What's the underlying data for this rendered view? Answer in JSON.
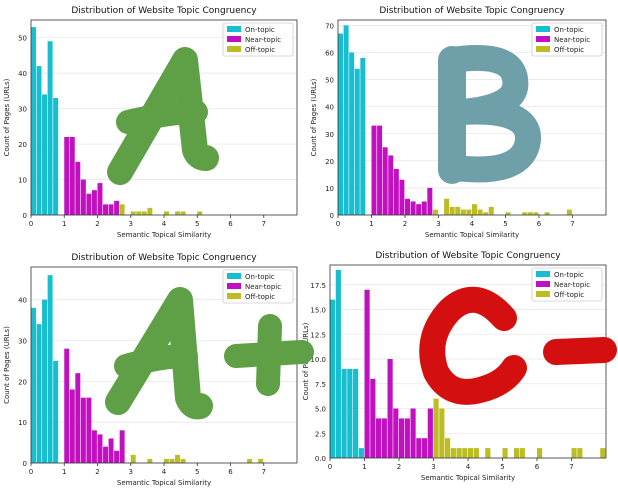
{
  "colors": {
    "on": "#17becf",
    "near": "#c010c0",
    "off": "#bcbd22",
    "grid": "#e8e8e8",
    "gradeA": "#5f9f45",
    "gradeB": "#6f9fa8",
    "gradeC": "#d40f0f"
  },
  "chart_data": [
    {
      "type": "bar",
      "title": "Distribution of Website Topic Congruency",
      "xlabel": "Semantic Topical Similarity",
      "ylabel": "Count of Pages (URLs)",
      "xlim": [
        0,
        8
      ],
      "ylim": [
        0,
        55
      ],
      "xticks": [
        "0",
        "1",
        "2",
        "3",
        "4",
        "5",
        "6",
        "7"
      ],
      "yticks": [
        "0",
        "10",
        "20",
        "30",
        "40",
        "50"
      ],
      "grade": "A",
      "legend": [
        "On-topic",
        "Near-topic",
        "Off-topic"
      ],
      "bin_width": 0.167,
      "series": [
        {
          "name": "On-topic",
          "bins": [
            [
              0.0,
              53
            ],
            [
              0.167,
              42
            ],
            [
              0.333,
              34
            ],
            [
              0.5,
              49
            ],
            [
              0.667,
              33
            ]
          ]
        },
        {
          "name": "Near-topic",
          "bins": [
            [
              1.0,
              22
            ],
            [
              1.167,
              22
            ],
            [
              1.333,
              15
            ],
            [
              1.5,
              10
            ],
            [
              1.667,
              6
            ],
            [
              1.833,
              7
            ],
            [
              2.0,
              9
            ],
            [
              2.167,
              3
            ],
            [
              2.333,
              3
            ],
            [
              2.5,
              4
            ]
          ]
        },
        {
          "name": "Off-topic",
          "bins": [
            [
              2.667,
              3
            ],
            [
              3.0,
              1
            ],
            [
              3.167,
              1
            ],
            [
              3.333,
              1
            ],
            [
              3.5,
              2
            ],
            [
              4.0,
              1
            ],
            [
              4.333,
              1
            ],
            [
              4.5,
              1
            ],
            [
              5.0,
              1
            ]
          ]
        }
      ]
    },
    {
      "type": "bar",
      "title": "Distribution of Website Topic Congruency",
      "xlabel": "Semantic Topical Similarity",
      "ylabel": "Count of Pages (URLs)",
      "xlim": [
        0,
        8
      ],
      "ylim": [
        0,
        72
      ],
      "xticks": [
        "0",
        "1",
        "2",
        "3",
        "4",
        "5",
        "6",
        "7"
      ],
      "yticks": [
        "0",
        "10",
        "20",
        "30",
        "40",
        "50",
        "60",
        "70"
      ],
      "grade": "B",
      "legend": [
        "On-topic",
        "Near-topic",
        "Off-topic"
      ],
      "bin_width": 0.167,
      "series": [
        {
          "name": "On-topic",
          "bins": [
            [
              0.0,
              67
            ],
            [
              0.167,
              70
            ],
            [
              0.333,
              60
            ],
            [
              0.5,
              54
            ],
            [
              0.667,
              58
            ]
          ]
        },
        {
          "name": "Near-topic",
          "bins": [
            [
              1.0,
              33
            ],
            [
              1.167,
              33
            ],
            [
              1.333,
              25
            ],
            [
              1.5,
              22
            ],
            [
              1.667,
              17
            ],
            [
              1.833,
              13
            ],
            [
              2.0,
              6
            ],
            [
              2.167,
              5
            ],
            [
              2.333,
              4
            ],
            [
              2.5,
              5
            ],
            [
              2.667,
              10
            ]
          ]
        },
        {
          "name": "Off-topic",
          "bins": [
            [
              2.833,
              2
            ],
            [
              3.167,
              6
            ],
            [
              3.333,
              3
            ],
            [
              3.5,
              3
            ],
            [
              3.667,
              2
            ],
            [
              3.833,
              2
            ],
            [
              4.0,
              4
            ],
            [
              4.167,
              2
            ],
            [
              4.333,
              1
            ],
            [
              4.5,
              3
            ],
            [
              5.0,
              1
            ],
            [
              5.5,
              1
            ],
            [
              5.667,
              1
            ],
            [
              5.833,
              1
            ],
            [
              6.167,
              1
            ],
            [
              6.833,
              2
            ]
          ]
        }
      ]
    },
    {
      "type": "bar",
      "title": "Distribution of Website Topic Congruency",
      "xlabel": "Semantic Topical Similarity",
      "ylabel": "Count of Pages (URLs)",
      "xlim": [
        0,
        8
      ],
      "ylim": [
        0,
        48
      ],
      "xticks": [
        "0",
        "1",
        "2",
        "3",
        "4",
        "5",
        "6",
        "7"
      ],
      "yticks": [
        "0",
        "10",
        "20",
        "30",
        "40"
      ],
      "grade": "A+",
      "legend": [
        "On-topic",
        "Near-topic",
        "Off-topic"
      ],
      "bin_width": 0.167,
      "series": [
        {
          "name": "On-topic",
          "bins": [
            [
              0.0,
              38
            ],
            [
              0.167,
              34
            ],
            [
              0.333,
              40
            ],
            [
              0.5,
              46
            ],
            [
              0.667,
              25
            ]
          ]
        },
        {
          "name": "Near-topic",
          "bins": [
            [
              1.0,
              28
            ],
            [
              1.167,
              18
            ],
            [
              1.333,
              22
            ],
            [
              1.5,
              16
            ],
            [
              1.667,
              16
            ],
            [
              1.833,
              8
            ],
            [
              2.0,
              7
            ],
            [
              2.167,
              4
            ],
            [
              2.333,
              6
            ],
            [
              2.5,
              3
            ],
            [
              2.667,
              8
            ]
          ]
        },
        {
          "name": "Off-topic",
          "bins": [
            [
              3.0,
              2
            ],
            [
              3.5,
              1
            ],
            [
              4.0,
              1
            ],
            [
              4.167,
              1
            ],
            [
              4.333,
              2
            ],
            [
              4.5,
              1
            ],
            [
              6.5,
              1
            ],
            [
              6.833,
              1
            ]
          ]
        }
      ]
    },
    {
      "type": "bar",
      "title": "Distribution of Website Topic Congruency",
      "xlabel": "Semantic Topical Similarity",
      "ylabel": "Count of Pages (URLs)",
      "xlim": [
        0,
        8
      ],
      "ylim": [
        0,
        19.5
      ],
      "xticks": [
        "0",
        "1",
        "2",
        "3",
        "4",
        "5",
        "6",
        "7"
      ],
      "yticks": [
        "0.0",
        "2.5",
        "5.0",
        "7.5",
        "10.0",
        "12.5",
        "15.0",
        "17.5"
      ],
      "grade": "C-",
      "legend": [
        "On-topic",
        "Near-topic",
        "Off-topic"
      ],
      "bin_width": 0.167,
      "series": [
        {
          "name": "On-topic",
          "bins": [
            [
              0.0,
              16
            ],
            [
              0.167,
              19
            ],
            [
              0.333,
              9
            ],
            [
              0.5,
              9
            ],
            [
              0.667,
              9
            ],
            [
              0.833,
              1
            ]
          ]
        },
        {
          "name": "Near-topic",
          "bins": [
            [
              1.0,
              17
            ],
            [
              1.167,
              8
            ],
            [
              1.333,
              4
            ],
            [
              1.5,
              4
            ],
            [
              1.667,
              10
            ],
            [
              1.833,
              5
            ],
            [
              2.0,
              4
            ],
            [
              2.167,
              4
            ],
            [
              2.333,
              5
            ],
            [
              2.5,
              2
            ],
            [
              2.667,
              2
            ],
            [
              2.833,
              5
            ]
          ]
        },
        {
          "name": "Off-topic",
          "bins": [
            [
              3.0,
              6
            ],
            [
              3.167,
              5
            ],
            [
              3.333,
              2
            ],
            [
              3.5,
              1
            ],
            [
              3.667,
              1
            ],
            [
              3.833,
              1
            ],
            [
              4.0,
              1
            ],
            [
              4.167,
              1
            ],
            [
              4.5,
              1
            ],
            [
              5.0,
              1
            ],
            [
              5.333,
              1
            ],
            [
              5.5,
              1
            ],
            [
              6.0,
              1
            ],
            [
              7.0,
              1
            ],
            [
              7.167,
              1
            ],
            [
              7.833,
              1
            ]
          ]
        }
      ]
    }
  ]
}
